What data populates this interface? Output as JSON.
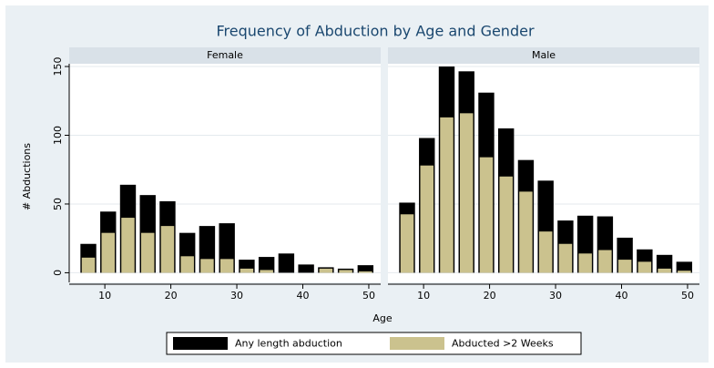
{
  "chart_data": {
    "type": "bar",
    "title": "Frequency of Abduction by Age and Gender",
    "panels": [
      "Female",
      "Male"
    ],
    "xlabel": "Age",
    "ylabel": "# Abductions",
    "x": [
      7.5,
      10.5,
      13.5,
      16.5,
      19.5,
      22.5,
      25.5,
      28.5,
      31.5,
      34.5,
      37.5,
      40.5,
      43.5,
      46.5,
      49.5
    ],
    "xlim": [
      4.6,
      51.8
    ],
    "xticks": [
      10,
      20,
      30,
      40,
      50
    ],
    "ylim": [
      -7,
      152
    ],
    "yticks": [
      0,
      50,
      100,
      150
    ],
    "grid": true,
    "series": [
      {
        "name": "Any length abduction",
        "color": "#000000",
        "values": [
          [
            21,
            44.5,
            64,
            56.5,
            52,
            29,
            34,
            36,
            9.5,
            11.5,
            14,
            6,
            4,
            3,
            5.5
          ],
          [
            51,
            98,
            150,
            146.5,
            131,
            105,
            82,
            67,
            38,
            41.5,
            41,
            25.5,
            17,
            13,
            8
          ]
        ]
      },
      {
        "name": "Abducted >2 Weeks",
        "color": "#cbc28e",
        "values": [
          [
            11,
            29,
            40,
            29,
            34,
            12,
            10,
            10,
            3,
            2,
            0,
            0,
            3,
            2,
            1
          ],
          [
            42.5,
            78,
            113,
            116,
            84,
            70,
            59,
            30,
            21,
            14,
            16.5,
            9.5,
            8,
            3,
            1.5
          ]
        ]
      }
    ]
  }
}
